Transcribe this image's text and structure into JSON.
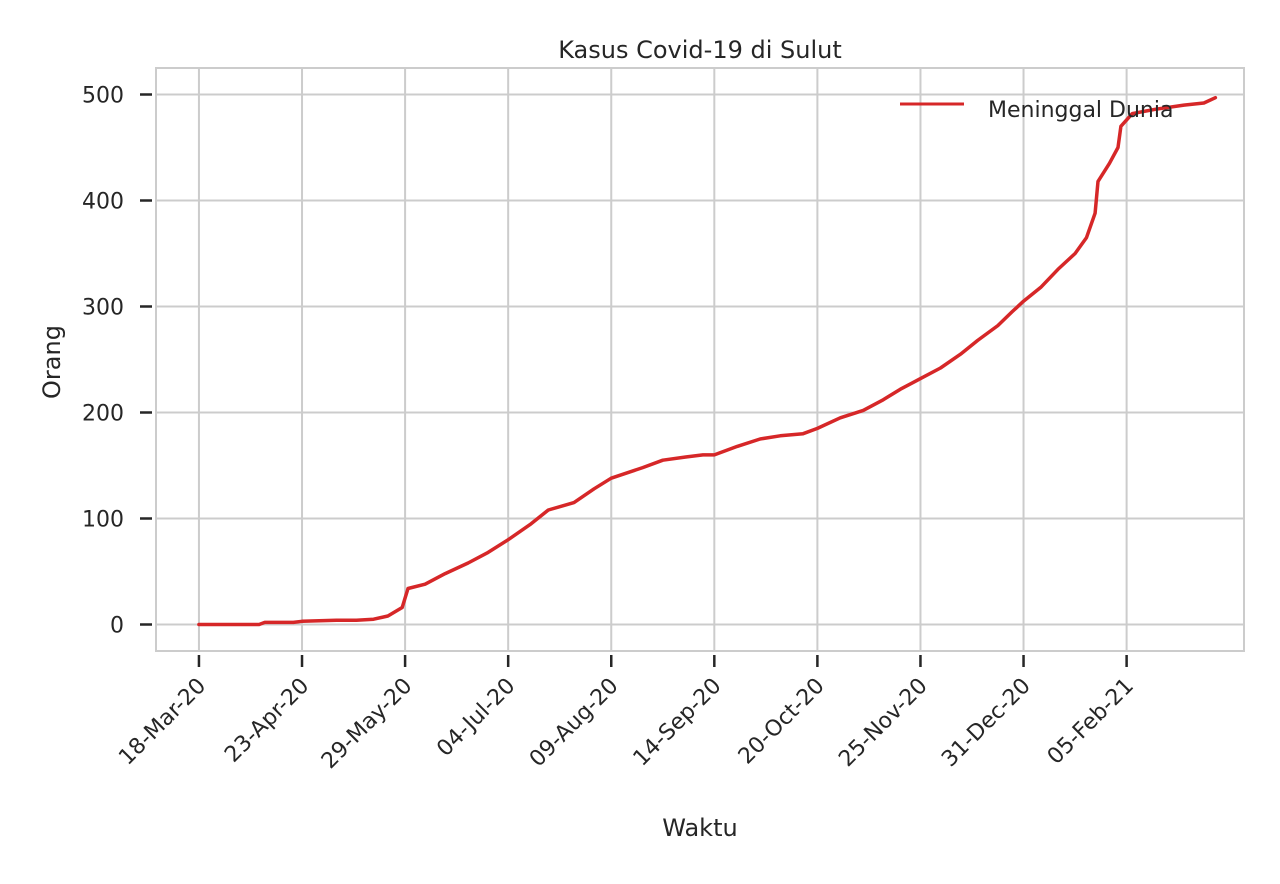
{
  "chart_data": {
    "type": "line",
    "title": "Kasus Covid-19 di Sulut",
    "xlabel": "Waktu",
    "ylabel": "Orang",
    "ylim": [
      -25,
      525
    ],
    "xlim": [
      "2020-03-03",
      "2021-03-18"
    ],
    "grid": true,
    "legend": {
      "placement": "top-right",
      "entries": [
        "Meninggal Dunia"
      ]
    },
    "yticks": [
      0,
      100,
      200,
      300,
      400,
      500
    ],
    "xticks": [
      {
        "date": "2020-03-18",
        "label": "18-Mar-20"
      },
      {
        "date": "2020-04-23",
        "label": "23-Apr-20"
      },
      {
        "date": "2020-05-29",
        "label": "29-May-20"
      },
      {
        "date": "2020-07-04",
        "label": "04-Jul-20"
      },
      {
        "date": "2020-08-09",
        "label": "09-Aug-20"
      },
      {
        "date": "2020-09-14",
        "label": "14-Sep-20"
      },
      {
        "date": "2020-10-20",
        "label": "20-Oct-20"
      },
      {
        "date": "2020-11-25",
        "label": "25-Nov-20"
      },
      {
        "date": "2020-12-31",
        "label": "31-Dec-20"
      },
      {
        "date": "2021-02-05",
        "label": "05-Feb-21"
      }
    ],
    "series": [
      {
        "name": "Meninggal Dunia",
        "color": "#d62728",
        "x": [
          "2020-03-18",
          "2020-04-08",
          "2020-04-10",
          "2020-04-20",
          "2020-04-23",
          "2020-05-05",
          "2020-05-12",
          "2020-05-18",
          "2020-05-23",
          "2020-05-28",
          "2020-05-30",
          "2020-06-05",
          "2020-06-12",
          "2020-06-20",
          "2020-06-27",
          "2020-07-04",
          "2020-07-12",
          "2020-07-18",
          "2020-07-27",
          "2020-08-03",
          "2020-08-09",
          "2020-08-20",
          "2020-08-27",
          "2020-09-04",
          "2020-09-10",
          "2020-09-14",
          "2020-09-22",
          "2020-09-30",
          "2020-10-07",
          "2020-10-15",
          "2020-10-20",
          "2020-10-28",
          "2020-11-05",
          "2020-11-12",
          "2020-11-18",
          "2020-11-25",
          "2020-12-02",
          "2020-12-09",
          "2020-12-15",
          "2020-12-22",
          "2020-12-27",
          "2020-12-31",
          "2021-01-06",
          "2021-01-12",
          "2021-01-18",
          "2021-01-22",
          "2021-01-25",
          "2021-01-26",
          "2021-01-30",
          "2021-02-02",
          "2021-02-03",
          "2021-02-07",
          "2021-02-15",
          "2021-02-25",
          "2021-03-04",
          "2021-03-08"
        ],
        "values": [
          0,
          0,
          2,
          2,
          3,
          4,
          4,
          5,
          8,
          16,
          34,
          38,
          48,
          58,
          68,
          80,
          95,
          108,
          115,
          128,
          138,
          148,
          155,
          158,
          160,
          160,
          168,
          175,
          178,
          180,
          185,
          195,
          202,
          212,
          222,
          232,
          242,
          255,
          268,
          282,
          295,
          305,
          318,
          335,
          350,
          365,
          388,
          418,
          435,
          450,
          470,
          482,
          486,
          490,
          492,
          497
        ]
      }
    ]
  }
}
